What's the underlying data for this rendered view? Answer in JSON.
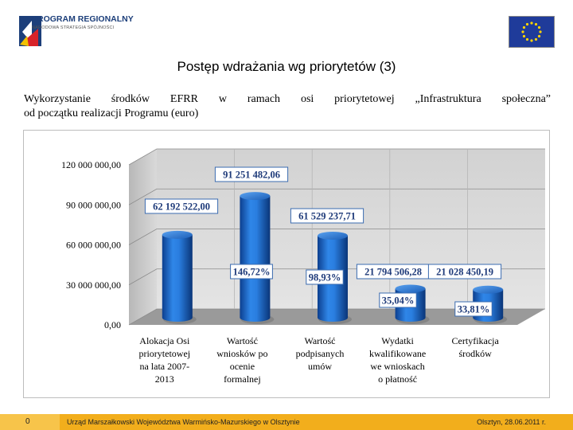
{
  "header": {
    "logo_line1": "PROGRAM REGIONALNY",
    "logo_line2": "NARODOWA STRATEGIA SPÓJNOŚCI"
  },
  "slide": {
    "title": "Postęp wdrażania wg priorytetów (3)",
    "subtitle_line1": "Wykorzystanie środków EFRR w ramach osi priorytetowej „Infrastruktura społeczna”",
    "subtitle_line2": "od początku realizacji Programu (euro)"
  },
  "colors": {
    "bar": "#1f6fd1",
    "footer": "#f2ae1c",
    "label_border": "#3a6bb0"
  },
  "chart_data": {
    "type": "bar",
    "ylim": [
      0,
      120000000
    ],
    "yticks": [
      "0,00",
      "30 000 000,00",
      "60 000 000,00",
      "90 000 000,00",
      "120 000 000,00"
    ],
    "categories": [
      [
        "Alokacja Osi",
        "priorytetowej",
        "na lata 2007-",
        "2013"
      ],
      [
        "Wartość",
        "wniosków po",
        "ocenie",
        "formalnej"
      ],
      [
        "Wartość",
        "podpisanych",
        "umów"
      ],
      [
        "Wydatki",
        "kwalifikowane",
        "we wnioskach",
        "o płatność"
      ],
      [
        "Certyfikacja",
        "środków"
      ]
    ],
    "values": [
      62192522.0,
      91251482.06,
      61529237.71,
      21794506.28,
      21028450.19
    ],
    "value_labels": [
      "62 192 522,00",
      "91 251 482,06",
      "61 529 237,71",
      "21 794 506,28",
      "21 028 450,19"
    ],
    "percent_labels": [
      "",
      "146,72%",
      "98,93%",
      "35,04%",
      "33,81%"
    ]
  },
  "footer": {
    "page": "0",
    "institution": "Urząd Marszałkowski Województwa Warmińsko-Mazurskiego w Olsztynie",
    "date": "Olsztyn, 28.06.2011 r."
  }
}
